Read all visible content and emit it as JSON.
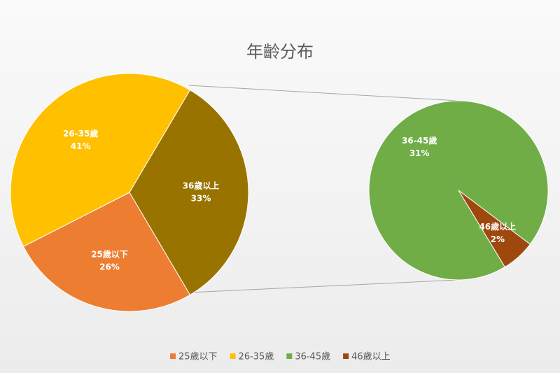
{
  "chart_data": {
    "type": "pie-of-pie",
    "title": "年齡分布",
    "main": {
      "categories": [
        "25歲以下",
        "26-35歲",
        "36歲以上"
      ],
      "values": [
        26,
        41,
        33
      ],
      "value_labels": [
        "26%",
        "41%",
        "33%"
      ],
      "colors": [
        "#ed7d31",
        "#ffc000",
        "#997300"
      ]
    },
    "secondary": {
      "categories": [
        "36-45歲",
        "46歲以上"
      ],
      "values": [
        31,
        2
      ],
      "value_labels": [
        "31%",
        "2%"
      ],
      "colors": [
        "#70ad47",
        "#9e480e"
      ]
    },
    "legend": "bottom"
  }
}
